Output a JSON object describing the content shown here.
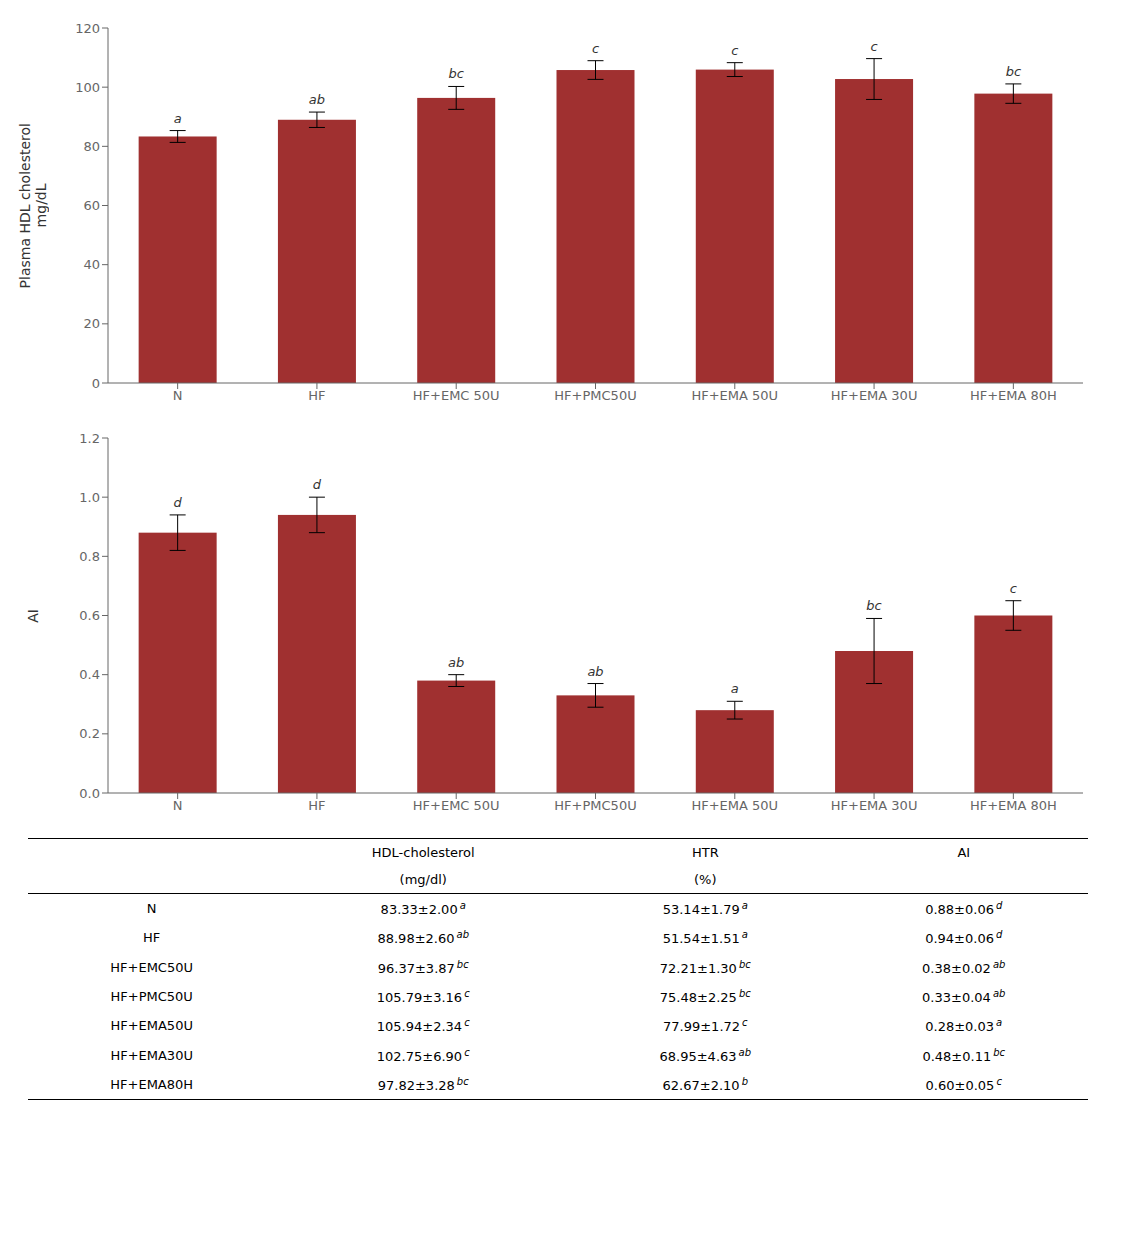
{
  "chart_data": [
    {
      "type": "bar",
      "categories": [
        "N",
        "HF",
        "HF+EMC 50U",
        "HF+PMC50U",
        "HF+EMA 50U",
        "HF+EMA 30U",
        "HF+EMA 80H"
      ],
      "values": [
        83.33,
        88.98,
        96.37,
        105.79,
        105.94,
        102.75,
        97.82
      ],
      "errors": [
        2.0,
        2.6,
        3.87,
        3.16,
        2.34,
        6.9,
        3.28
      ],
      "annotations": [
        "a",
        "ab",
        "bc",
        "c",
        "c",
        "c",
        "bc"
      ],
      "color": "#a03030",
      "ylabel": "Plasma HDL cholesterol\nmg/dL",
      "ylim": [
        0,
        120
      ],
      "yticks": [
        0,
        20,
        40,
        60,
        80,
        100,
        120
      ],
      "grid": false
    },
    {
      "type": "bar",
      "categories": [
        "N",
        "HF",
        "HF+EMC 50U",
        "HF+PMC50U",
        "HF+EMA 50U",
        "HF+EMA 30U",
        "HF+EMA 80H"
      ],
      "values": [
        0.88,
        0.94,
        0.38,
        0.33,
        0.28,
        0.48,
        0.6
      ],
      "errors": [
        0.06,
        0.06,
        0.02,
        0.04,
        0.03,
        0.11,
        0.05
      ],
      "annotations": [
        "d",
        "d",
        "ab",
        "ab",
        "a",
        "bc",
        "c"
      ],
      "color": "#a03030",
      "ylabel": "AI",
      "ylim": [
        0,
        1.2
      ],
      "yticks": [
        {
          "value": 0,
          "label": "0.0"
        },
        0.2,
        0.4,
        0.6,
        0.8,
        {
          "value": 1.0,
          "label": "1.0"
        },
        1.2
      ],
      "grid": false
    },
    {
      "type": "table",
      "categories": [
        "N",
        "HF",
        "HF+EMC50U",
        "HF+PMC50U",
        "HF+EMA50U",
        "HF+EMA30U",
        "HF+EMA80H"
      ],
      "columns": [
        {
          "name": "HDL-cholesterol",
          "unit": "(mg/dl)",
          "values": [
            "83.33±2.00",
            "88.98±2.60",
            "96.37±3.87",
            "105.79±3.16",
            "105.94±2.34",
            "102.75±6.90",
            "97.82±3.28"
          ],
          "letters": [
            "a",
            "ab",
            "bc",
            "c",
            "c",
            "c",
            "bc"
          ]
        },
        {
          "name": "HTR",
          "unit": "(%)",
          "values": [
            "53.14±1.79",
            "51.54±1.51",
            "72.21±1.30",
            "75.48±2.25",
            "77.99±1.72",
            "68.95±4.63",
            "62.67±2.10"
          ],
          "letters": [
            "a",
            "a",
            "bc",
            "bc",
            "c",
            "ab",
            "b"
          ]
        },
        {
          "name": "AI",
          "unit": null,
          "values": [
            "0.88±0.06",
            "0.94±0.06",
            "0.38±0.02",
            "0.33±0.04",
            "0.28±0.03",
            "0.48±0.11",
            "0.60±0.05"
          ],
          "letters": [
            "d",
            "d",
            "ab",
            "ab",
            "a",
            "bc",
            "c"
          ]
        }
      ]
    }
  ]
}
